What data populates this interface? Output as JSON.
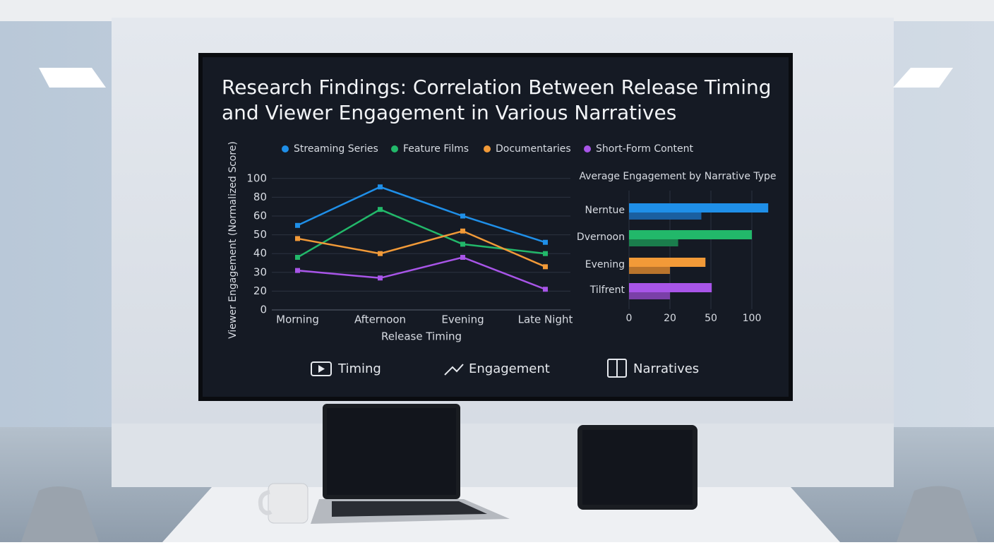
{
  "chart_data": [
    {
      "type": "line",
      "title": "Research Findings: Correlation Between Release Timing and Viewer Engagement in Various Narratives",
      "x_label": "Release Timing",
      "y_label": "Viewer Engagement (Normalized Score)",
      "categories": [
        "Morning",
        "Afternoon",
        "Evening",
        "Late Night"
      ],
      "series": [
        {
          "name": "Streaming Series",
          "color": "#1f8fe8",
          "values": [
            55,
            91,
            60,
            46
          ]
        },
        {
          "name": "Feature Films",
          "color": "#22b86a",
          "values": [
            38,
            67,
            45,
            40
          ]
        },
        {
          "name": "Documentaries",
          "color": "#f29a38",
          "values": [
            48,
            40,
            52,
            33
          ]
        },
        {
          "name": "Short-Form Content",
          "color": "#a855e8",
          "values": [
            31,
            27,
            38,
            21
          ]
        }
      ],
      "ylim": [
        0,
        100
      ],
      "yticks": [
        0,
        20,
        30,
        40,
        50,
        60,
        80,
        100
      ],
      "grid": true
    },
    {
      "type": "barh",
      "title": "Average Engagement by Narrative Type",
      "categories": [
        "Nerntue",
        "Dvernoon",
        "Evening",
        "Tilfrent"
      ],
      "series": [
        {
          "colors": [
            "#1f8fe8",
            "#22b86a",
            "#f29a38",
            "#a855e8"
          ],
          "values": [
            120,
            100,
            46,
            51
          ]
        },
        {
          "colors": [
            "#1a5fa0",
            "#1a7d4c",
            "#b9742c",
            "#7a40a8"
          ],
          "values": [
            43,
            26,
            20,
            20
          ]
        }
      ],
      "xlim": [
        0,
        120
      ],
      "xticks": [
        0,
        20,
        50,
        100
      ],
      "grid": true
    }
  ],
  "footer": [
    "Timing",
    "Engagement",
    "Narratives"
  ]
}
